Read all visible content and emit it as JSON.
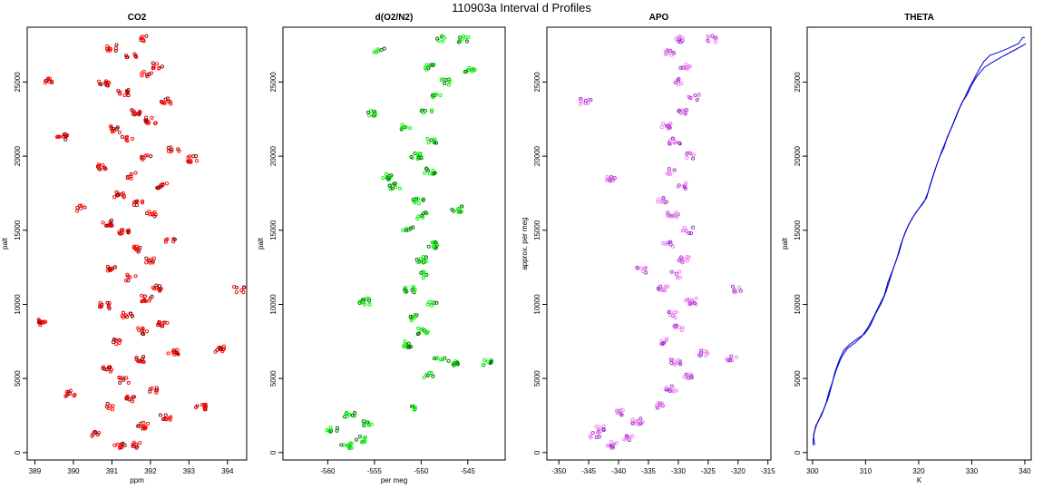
{
  "figure": {
    "title": "110903a   Interval d Profiles"
  },
  "chart_data": [
    {
      "type": "scatter",
      "title": "CO2",
      "xlabel": "ppm",
      "ylabel": "palt",
      "xlim": [
        388.8,
        394.5
      ],
      "ylim": [
        -500,
        28700
      ],
      "xticks": [
        389,
        390,
        391,
        392,
        393,
        394
      ],
      "xtick_labels": [
        "389",
        "390",
        "391",
        "392",
        "393",
        "394"
      ],
      "yticks": [
        0,
        5000,
        10000,
        15000,
        20000,
        25000
      ],
      "ytick_labels": [
        "0",
        "5000",
        "10000",
        "15000",
        "20000",
        "25000"
      ],
      "colors": {
        "primary": "#ff0000",
        "secondary": "#8b0000"
      },
      "grid": false,
      "legend": "none",
      "series": [
        {
          "values": [
            [
              391.2,
              500
            ],
            [
              391.6,
              500
            ],
            [
              390.6,
              1200
            ],
            [
              391.8,
              1800
            ],
            [
              392.4,
              2400
            ],
            [
              391.0,
              3100
            ],
            [
              391.5,
              3600
            ],
            [
              392.1,
              4200
            ],
            [
              391.3,
              4900
            ],
            [
              390.9,
              5600
            ],
            [
              391.7,
              6300
            ],
            [
              392.6,
              6800
            ],
            [
              391.1,
              7500
            ],
            [
              391.8,
              8200
            ],
            [
              392.3,
              8700
            ],
            [
              391.4,
              9300
            ],
            [
              390.8,
              9900
            ],
            [
              391.9,
              10400
            ],
            [
              392.2,
              11100
            ],
            [
              391.5,
              11800
            ],
            [
              391.0,
              12400
            ],
            [
              392.0,
              13000
            ],
            [
              391.6,
              13700
            ],
            [
              392.5,
              14300
            ],
            [
              391.3,
              14900
            ],
            [
              390.9,
              15500
            ],
            [
              392.0,
              16100
            ],
            [
              391.7,
              16800
            ],
            [
              391.2,
              17400
            ],
            [
              392.3,
              18000
            ],
            [
              391.5,
              18700
            ],
            [
              390.7,
              19300
            ],
            [
              391.9,
              19900
            ],
            [
              392.6,
              20500
            ],
            [
              391.4,
              21100
            ],
            [
              391.1,
              21800
            ],
            [
              392.0,
              22400
            ],
            [
              391.6,
              23000
            ],
            [
              392.4,
              23700
            ],
            [
              391.3,
              24300
            ],
            [
              390.8,
              24900
            ],
            [
              391.9,
              25500
            ],
            [
              392.2,
              26100
            ],
            [
              391.5,
              26700
            ],
            [
              391.0,
              27300
            ],
            [
              391.8,
              27900
            ],
            [
              389.4,
              25100
            ],
            [
              389.7,
              21300
            ],
            [
              389.2,
              8800
            ],
            [
              390.2,
              16500
            ],
            [
              393.1,
              19800
            ],
            [
              393.8,
              7000
            ],
            [
              394.3,
              11000
            ],
            [
              389.9,
              4000
            ],
            [
              393.3,
              3100
            ]
          ]
        }
      ]
    },
    {
      "type": "scatter",
      "title": "d(O2/N2)",
      "xlabel": "per meg",
      "ylabel": "palt",
      "xlim": [
        -564.8,
        -541
      ],
      "ylim": [
        -500,
        28700
      ],
      "xticks": [
        -560,
        -555,
        -550,
        -545
      ],
      "xtick_labels": [
        "-560",
        "-555",
        "-550",
        "-545"
      ],
      "yticks": [
        0,
        5000,
        10000,
        15000,
        20000,
        25000
      ],
      "ytick_labels": [
        "0",
        "5000",
        "10000",
        "15000",
        "20000",
        "25000"
      ],
      "colors": {
        "primary": "#00ee00",
        "secondary": "#006400"
      },
      "grid": false,
      "legend": "none",
      "series": [
        {
          "values": [
            [
              -558.0,
              500
            ],
            [
              -556.5,
              900
            ],
            [
              -559.5,
              1500
            ],
            [
              -555.8,
              2000
            ],
            [
              -557.6,
              2600
            ],
            [
              -551.0,
              3000
            ],
            [
              -549.3,
              5200
            ],
            [
              -548.0,
              6200
            ],
            [
              -546.5,
              6000
            ],
            [
              -543.0,
              6100
            ],
            [
              -551.5,
              7300
            ],
            [
              -549.8,
              8200
            ],
            [
              -550.6,
              9100
            ],
            [
              -548.9,
              10000
            ],
            [
              -551.2,
              11000
            ],
            [
              -549.6,
              12000
            ],
            [
              -550.0,
              13000
            ],
            [
              -548.7,
              14000
            ],
            [
              -551.4,
              15000
            ],
            [
              -549.9,
              16000
            ],
            [
              -550.3,
              17000
            ],
            [
              -552.8,
              18000
            ],
            [
              -549.1,
              19000
            ],
            [
              -550.5,
              20000
            ],
            [
              -548.8,
              21000
            ],
            [
              -551.6,
              22000
            ],
            [
              -549.4,
              23000
            ],
            [
              -548.2,
              24000
            ],
            [
              -547.5,
              25000
            ],
            [
              -549.0,
              26000
            ],
            [
              -554.5,
              27200
            ],
            [
              -548.0,
              27900
            ],
            [
              -545.5,
              27900
            ],
            [
              -553.6,
              18600
            ],
            [
              -556.0,
              10200
            ],
            [
              -555.1,
              22900
            ],
            [
              -546.2,
              16400
            ],
            [
              -544.8,
              25800
            ]
          ]
        }
      ]
    },
    {
      "type": "scatter",
      "title": "APO",
      "xlabel": "",
      "ylabel": "approx. per meg",
      "xlim": [
        -352,
        -314.5
      ],
      "ylim": [
        -500,
        28700
      ],
      "xticks": [
        -350,
        -345,
        -340,
        -335,
        -330,
        -325,
        -320,
        -315
      ],
      "xtick_labels": [
        "-350",
        "-345",
        "-340",
        "-335",
        "-330",
        "-325",
        "-320",
        "-315"
      ],
      "yticks": [
        0,
        5000,
        10000,
        15000,
        20000,
        25000
      ],
      "ytick_labels": [
        "0",
        "5000",
        "10000",
        "15000",
        "20000",
        "25000"
      ],
      "colors": {
        "primary": "#ee82ee",
        "secondary": "#9932cc"
      },
      "grid": false,
      "legend": "none",
      "series": [
        {
          "values": [
            [
              -341.0,
              500
            ],
            [
              -338.5,
              1000
            ],
            [
              -343.0,
              1600
            ],
            [
              -336.8,
              2100
            ],
            [
              -339.6,
              2700
            ],
            [
              -333.5,
              3200
            ],
            [
              -331.2,
              4300
            ],
            [
              -328.6,
              5200
            ],
            [
              -330.4,
              6100
            ],
            [
              -326.0,
              6700
            ],
            [
              -332.1,
              7500
            ],
            [
              -329.8,
              8400
            ],
            [
              -331.0,
              9300
            ],
            [
              -327.9,
              10200
            ],
            [
              -332.5,
              11100
            ],
            [
              -330.2,
              12000
            ],
            [
              -329.0,
              13000
            ],
            [
              -331.7,
              14000
            ],
            [
              -328.4,
              15000
            ],
            [
              -330.9,
              16000
            ],
            [
              -332.8,
              17000
            ],
            [
              -329.5,
              18000
            ],
            [
              -331.4,
              19000
            ],
            [
              -328.0,
              20000
            ],
            [
              -330.6,
              21000
            ],
            [
              -332.0,
              22000
            ],
            [
              -329.2,
              23000
            ],
            [
              -327.4,
              24000
            ],
            [
              -330.0,
              25000
            ],
            [
              -328.9,
              26000
            ],
            [
              -331.3,
              27000
            ],
            [
              -330.0,
              27900
            ],
            [
              -324.5,
              27900
            ],
            [
              -345.5,
              23700
            ],
            [
              -341.5,
              18400
            ],
            [
              -336.2,
              12300
            ],
            [
              -321.0,
              6400
            ],
            [
              -320.0,
              11000
            ],
            [
              -344.0,
              1200
            ]
          ]
        }
      ]
    },
    {
      "type": "line",
      "title": "THETA",
      "xlabel": "K",
      "ylabel": "palt",
      "xlim": [
        299,
        341.2
      ],
      "ylim": [
        -500,
        28700
      ],
      "xticks": [
        300,
        310,
        320,
        330,
        340
      ],
      "xtick_labels": [
        "300",
        "310",
        "320",
        "330",
        "340"
      ],
      "yticks": [
        0,
        5000,
        10000,
        15000,
        20000,
        25000
      ],
      "ytick_labels": [
        "0",
        "5000",
        "10000",
        "15000",
        "20000",
        "25000"
      ],
      "colors": {
        "primary": "#0000cd"
      },
      "grid": false,
      "legend": "none",
      "series": [
        {
          "values": [
            [
              300.1,
              500
            ],
            [
              300.2,
              1100
            ],
            [
              300.6,
              1800
            ],
            [
              301.3,
              2300
            ],
            [
              302.1,
              2900
            ],
            [
              303.0,
              3700
            ],
            [
              303.6,
              4500
            ],
            [
              304.2,
              5400
            ],
            [
              305.0,
              6200
            ],
            [
              305.9,
              6900
            ],
            [
              307.0,
              7300
            ],
            [
              308.5,
              7700
            ],
            [
              309.8,
              8000
            ],
            [
              310.8,
              8500
            ],
            [
              311.8,
              9300
            ],
            [
              313.0,
              10100
            ],
            [
              313.9,
              10900
            ],
            [
              314.6,
              11700
            ],
            [
              315.4,
              12600
            ],
            [
              316.3,
              13500
            ],
            [
              317.0,
              14400
            ],
            [
              318.0,
              15300
            ],
            [
              319.3,
              16100
            ],
            [
              320.5,
              16700
            ],
            [
              321.5,
              17200
            ],
            [
              322.1,
              18000
            ],
            [
              322.9,
              18900
            ],
            [
              323.9,
              19900
            ],
            [
              324.8,
              20600
            ],
            [
              325.4,
              21300
            ],
            [
              326.3,
              22000
            ],
            [
              327.1,
              22700
            ],
            [
              328.0,
              23500
            ],
            [
              329.2,
              24200
            ],
            [
              330.0,
              24800
            ],
            [
              331.0,
              25400
            ],
            [
              332.4,
              26000
            ],
            [
              334.2,
              26400
            ],
            [
              336.2,
              26800
            ],
            [
              338.3,
              27200
            ],
            [
              339.8,
              27500
            ],
            [
              340.2,
              27600
            ]
          ]
        },
        {
          "values": [
            [
              300.4,
              500
            ],
            [
              300.2,
              1200
            ],
            [
              300.8,
              1900
            ],
            [
              301.8,
              2600
            ],
            [
              302.6,
              3400
            ],
            [
              303.1,
              4100
            ],
            [
              303.8,
              4800
            ],
            [
              304.5,
              5600
            ],
            [
              305.4,
              6400
            ],
            [
              306.5,
              7000
            ],
            [
              308.0,
              7400
            ],
            [
              309.2,
              7800
            ],
            [
              310.2,
              8300
            ],
            [
              311.3,
              9000
            ],
            [
              312.4,
              9800
            ],
            [
              313.5,
              10600
            ],
            [
              314.2,
              11500
            ],
            [
              315.1,
              12300
            ],
            [
              315.9,
              13100
            ],
            [
              316.6,
              14000
            ],
            [
              317.5,
              14900
            ],
            [
              318.6,
              15700
            ],
            [
              319.9,
              16400
            ],
            [
              321.0,
              16900
            ],
            [
              321.8,
              17600
            ],
            [
              322.5,
              18400
            ],
            [
              323.4,
              19400
            ],
            [
              324.3,
              20300
            ],
            [
              325.0,
              20900
            ],
            [
              325.8,
              21600
            ],
            [
              326.6,
              22300
            ],
            [
              327.5,
              23100
            ],
            [
              328.6,
              23900
            ],
            [
              329.5,
              24600
            ],
            [
              330.4,
              25200
            ],
            [
              331.3,
              25800
            ],
            [
              332.3,
              26400
            ],
            [
              333.4,
              26800
            ],
            [
              335.0,
              27000
            ],
            [
              337.0,
              27300
            ],
            [
              338.8,
              27600
            ],
            [
              339.6,
              28000
            ],
            [
              340.0,
              28000
            ]
          ]
        }
      ]
    }
  ]
}
